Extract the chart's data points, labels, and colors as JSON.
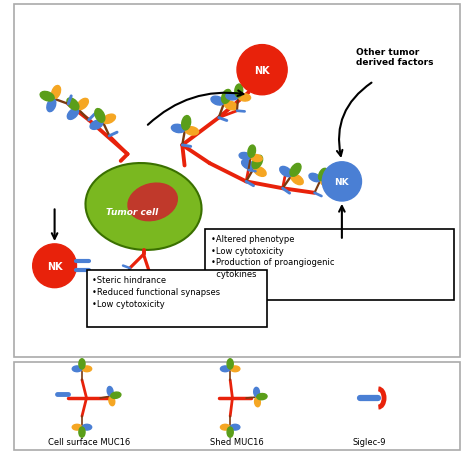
{
  "bg_color": "#ffffff",
  "red": "#e8220b",
  "orange": "#f5a623",
  "blue": "#4a7fd4",
  "green": "#5a9e1a",
  "brown": "#7a3a10",
  "tumor_green": "#7ab820",
  "tumor_inner_red": "#c0392b",
  "nk_red_label": "NK",
  "nk_blue_label": "NK",
  "tumor_label": "Tumor cell",
  "text1": "•Altered phenotype\n•Low cytotoxicity\n•Production of proangiogenic\n  cytokines",
  "text2": "•Steric hindrance\n•Reduced functional synapses\n•Low cytotoxicity",
  "text3": "Other tumor\nderived factors",
  "legend1": "Cell surface MUC16",
  "legend2": "Shed MUC16",
  "legend3": "Siglec-9"
}
